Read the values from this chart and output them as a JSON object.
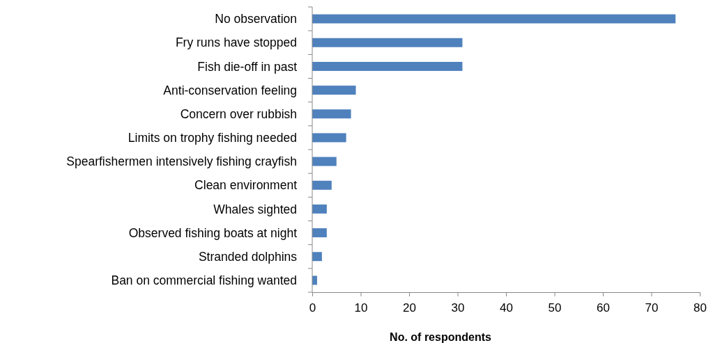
{
  "chart_data": {
    "type": "bar",
    "orientation": "horizontal",
    "xlabel": "No. of respondents",
    "categories": [
      "No observation",
      "Fry runs have stopped",
      "Fish die-off in past",
      "Anti-conservation feeling",
      "Concern over rubbish",
      "Limits on trophy fishing needed",
      "Spearfishermen intensively fishing crayfish",
      "Clean environment",
      "Whales sighted",
      "Observed fishing boats at night ",
      "Stranded dolphins",
      "Ban on commercial fishing wanted"
    ],
    "values": [
      75,
      31,
      31,
      9,
      8,
      7,
      5,
      4,
      3,
      3,
      2,
      1
    ],
    "color": "#4f81bd",
    "xlim": [
      0,
      80
    ],
    "xticks": [
      0,
      10,
      20,
      30,
      40,
      50,
      60,
      70,
      80
    ]
  }
}
